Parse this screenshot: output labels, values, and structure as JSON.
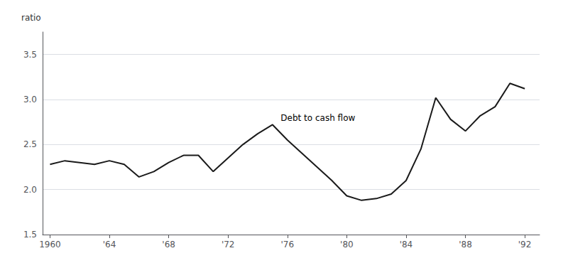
{
  "chart_data": {
    "type": "line",
    "ylabel": "ratio",
    "x": [
      1960,
      1961,
      1962,
      1963,
      1964,
      1965,
      1966,
      1967,
      1968,
      1969,
      1970,
      1971,
      1972,
      1973,
      1974,
      1975,
      1976,
      1977,
      1978,
      1979,
      1980,
      1981,
      1982,
      1983,
      1984,
      1985,
      1986,
      1987,
      1988,
      1989,
      1990,
      1991,
      1992
    ],
    "values": [
      2.28,
      2.32,
      2.3,
      2.28,
      2.32,
      2.28,
      2.14,
      2.2,
      2.3,
      2.38,
      2.38,
      2.2,
      2.35,
      2.5,
      2.62,
      2.72,
      2.55,
      2.4,
      2.25,
      2.1,
      1.93,
      1.88,
      1.9,
      1.95,
      2.1,
      2.45,
      3.02,
      2.78,
      2.65,
      2.82,
      2.92,
      3.18,
      3.12
    ],
    "color": "#1a1a1a",
    "xlim": [
      1959.5,
      1993.0
    ],
    "xticks": [
      1960,
      {
        "value": 1964,
        "label": "'64"
      },
      {
        "value": 1968,
        "label": "'68"
      },
      {
        "value": 1972,
        "label": "'72"
      },
      {
        "value": 1976,
        "label": "'76"
      },
      {
        "value": 1980,
        "label": "'80"
      },
      {
        "value": 1984,
        "label": "'84"
      },
      {
        "value": 1988,
        "label": "'88"
      },
      {
        "value": 1992,
        "label": "'92"
      }
    ],
    "ylim": [
      1.5,
      3.75
    ],
    "yticks": [
      1.5,
      {
        "value": 2.0,
        "label": "2.0"
      },
      2.5,
      {
        "value": 3.0,
        "label": "3.0"
      },
      3.5
    ],
    "grid": true,
    "annotations": [
      {
        "text": "Debt to cash flow",
        "x": 1975.5,
        "y": 2.72
      }
    ]
  }
}
